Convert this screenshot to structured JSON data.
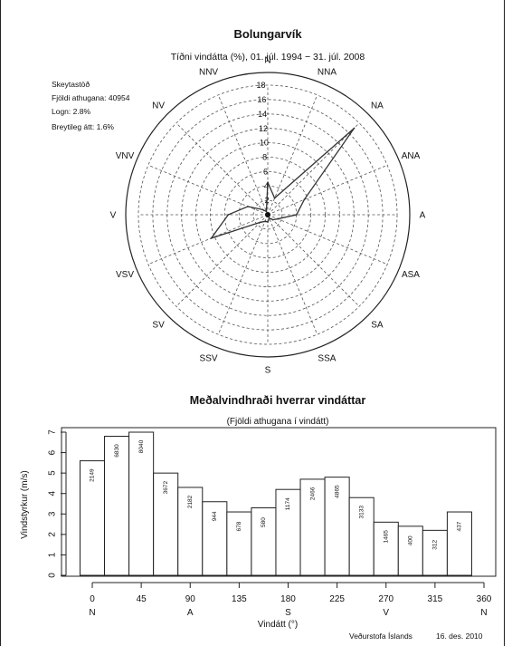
{
  "meta": {
    "station_info": [
      "Skeytastöð",
      "Fjöldi athugana: 40954",
      "Logn: 2.8%",
      "Breytileg átt: 1.6%"
    ],
    "footer_org": "Veðurstofa Íslands",
    "footer_date": "16. des. 2010"
  },
  "chart_data": [
    {
      "type": "radar",
      "title": "Bolungarvík",
      "subtitle": "Tíðni vindátta (%), 01. júl. 1994 − 31. júl. 2008",
      "directions": [
        "N",
        "NNA",
        "NA",
        "ANA",
        "A",
        "ASA",
        "SA",
        "SSA",
        "S",
        "SSV",
        "SV",
        "VSV",
        "V",
        "VNV",
        "NV",
        "NNV"
      ],
      "values": [
        4.5,
        2.5,
        17.0,
        5.5,
        4.0,
        1.5,
        1.0,
        0.5,
        1.0,
        1.0,
        1.5,
        8.5,
        5.5,
        3.0,
        1.0,
        0.5
      ],
      "radial_ticks": [
        2,
        4,
        6,
        8,
        10,
        12,
        14,
        16,
        18
      ],
      "rlim": [
        0,
        18
      ],
      "grid": true
    },
    {
      "type": "bar",
      "title": "Meðalvindhraði hverrar vindáttar",
      "subtitle": "(Fjöldi athugana í vindátt)",
      "xlabel": "Vindátt (°)",
      "ylabel": "Vindstyrkur (m/s)",
      "bin_width": 22.5,
      "x_start": -11.25,
      "values": [
        5.6,
        6.8,
        7.0,
        5.0,
        4.3,
        3.6,
        3.1,
        3.3,
        4.2,
        4.7,
        4.8,
        3.8,
        2.6,
        2.4,
        2.2,
        3.1
      ],
      "counts": [
        "2149",
        "6830",
        "8040",
        "3672",
        "2182",
        "944",
        "678",
        "580",
        "1174",
        "2466",
        "4865",
        "3133",
        "1465",
        "400",
        "312",
        "437"
      ],
      "x_ticks": [
        0,
        45,
        90,
        135,
        180,
        225,
        270,
        315,
        360
      ],
      "x_dir_labels": [
        "N",
        "A",
        "S",
        "V",
        "N"
      ],
      "x_dir_positions": [
        0,
        90,
        180,
        270,
        360
      ],
      "y_ticks": [
        0,
        1,
        2,
        3,
        4,
        5,
        6,
        7
      ],
      "ylim": [
        0,
        7
      ]
    }
  ]
}
